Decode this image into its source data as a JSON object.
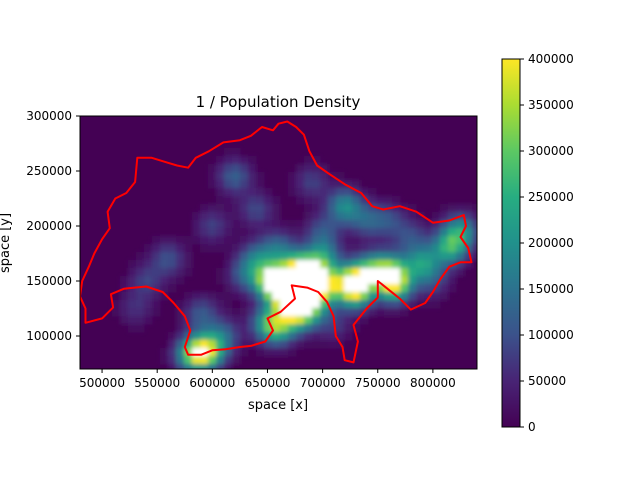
{
  "chart_data": {
    "type": "heatmap",
    "title": "1 / Population Density",
    "xlabel": "space [x]",
    "ylabel": "space [y]",
    "xlim": [
      480000,
      840000
    ],
    "ylim": [
      70000,
      300000
    ],
    "xticks": [
      500000,
      550000,
      600000,
      650000,
      700000,
      750000,
      800000
    ],
    "yticks": [
      100000,
      150000,
      200000,
      250000,
      300000
    ],
    "colorbar": {
      "range": [
        0,
        400000
      ],
      "ticks": [
        0,
        50000,
        100000,
        150000,
        200000,
        250000,
        300000,
        350000,
        400000
      ],
      "colormap": "viridis"
    },
    "background_value": 0,
    "hotspots": [
      {
        "x": 655000,
        "y": 150000,
        "value": 420000
      },
      {
        "x": 678000,
        "y": 160000,
        "value": 340000
      },
      {
        "x": 668000,
        "y": 140000,
        "value": 300000
      },
      {
        "x": 690000,
        "y": 152000,
        "value": 270000
      },
      {
        "x": 700000,
        "y": 146000,
        "value": 300000
      },
      {
        "x": 700000,
        "y": 172000,
        "value": 190000
      },
      {
        "x": 727000,
        "y": 150000,
        "value": 320000
      },
      {
        "x": 730000,
        "y": 140000,
        "value": 260000
      },
      {
        "x": 745000,
        "y": 160000,
        "value": 230000
      },
      {
        "x": 765000,
        "y": 147000,
        "value": 350000
      },
      {
        "x": 762000,
        "y": 160000,
        "value": 200000
      },
      {
        "x": 790000,
        "y": 166000,
        "value": 200000
      },
      {
        "x": 815000,
        "y": 180000,
        "value": 230000
      },
      {
        "x": 825000,
        "y": 195000,
        "value": 200000
      },
      {
        "x": 640000,
        "y": 170000,
        "value": 140000
      },
      {
        "x": 630000,
        "y": 155000,
        "value": 110000
      },
      {
        "x": 660000,
        "y": 180000,
        "value": 130000
      },
      {
        "x": 690000,
        "y": 130000,
        "value": 200000
      },
      {
        "x": 680000,
        "y": 120000,
        "value": 230000
      },
      {
        "x": 672000,
        "y": 130000,
        "value": 220000
      },
      {
        "x": 660000,
        "y": 108000,
        "value": 220000
      },
      {
        "x": 650000,
        "y": 112000,
        "value": 160000
      },
      {
        "x": 595000,
        "y": 86000,
        "value": 320000
      },
      {
        "x": 582000,
        "y": 83000,
        "value": 250000
      },
      {
        "x": 610000,
        "y": 100000,
        "value": 120000
      },
      {
        "x": 590000,
        "y": 120000,
        "value": 110000
      },
      {
        "x": 720000,
        "y": 218000,
        "value": 190000
      },
      {
        "x": 700000,
        "y": 195000,
        "value": 100000
      },
      {
        "x": 740000,
        "y": 205000,
        "value": 110000
      },
      {
        "x": 760000,
        "y": 205000,
        "value": 90000
      },
      {
        "x": 620000,
        "y": 245000,
        "value": 120000
      },
      {
        "x": 690000,
        "y": 240000,
        "value": 80000
      },
      {
        "x": 560000,
        "y": 170000,
        "value": 100000
      },
      {
        "x": 540000,
        "y": 150000,
        "value": 80000
      },
      {
        "x": 600000,
        "y": 200000,
        "value": 80000
      },
      {
        "x": 640000,
        "y": 215000,
        "value": 90000
      },
      {
        "x": 780000,
        "y": 190000,
        "value": 90000
      },
      {
        "x": 800000,
        "y": 150000,
        "value": 80000
      },
      {
        "x": 710000,
        "y": 110000,
        "value": 70000
      },
      {
        "x": 530000,
        "y": 125000,
        "value": 60000
      }
    ],
    "border": {
      "color": "#ff0000",
      "points": [
        [
          485000,
          112000
        ],
        [
          500000,
          116000
        ],
        [
          510000,
          126000
        ],
        [
          508000,
          138000
        ],
        [
          520000,
          143000
        ],
        [
          540000,
          145000
        ],
        [
          555000,
          140000
        ],
        [
          565000,
          130000
        ],
        [
          575000,
          118000
        ],
        [
          580000,
          105000
        ],
        [
          575000,
          90000
        ],
        [
          578000,
          83000
        ],
        [
          590000,
          83000
        ],
        [
          600000,
          87000
        ],
        [
          612000,
          88000
        ],
        [
          625000,
          90000
        ],
        [
          635000,
          91000
        ],
        [
          648000,
          95000
        ],
        [
          655000,
          105000
        ],
        [
          650000,
          116000
        ],
        [
          662000,
          122000
        ],
        [
          675000,
          134000
        ],
        [
          672000,
          146000
        ],
        [
          686000,
          144000
        ],
        [
          696000,
          140000
        ],
        [
          704000,
          131000
        ],
        [
          710000,
          118000
        ],
        [
          712000,
          100000
        ],
        [
          718000,
          90000
        ],
        [
          720000,
          78000
        ],
        [
          728000,
          76000
        ],
        [
          732000,
          95000
        ],
        [
          728000,
          110000
        ],
        [
          740000,
          125000
        ],
        [
          750000,
          135000
        ],
        [
          750000,
          150000
        ],
        [
          760000,
          142000
        ],
        [
          770000,
          134000
        ],
        [
          780000,
          124000
        ],
        [
          793000,
          130000
        ],
        [
          800000,
          140000
        ],
        [
          807000,
          152000
        ],
        [
          815000,
          163000
        ],
        [
          825000,
          167000
        ],
        [
          835000,
          167000
        ],
        [
          832000,
          180000
        ],
        [
          825000,
          190000
        ],
        [
          830000,
          200000
        ],
        [
          828000,
          210000
        ],
        [
          815000,
          205000
        ],
        [
          800000,
          203000
        ],
        [
          785000,
          213000
        ],
        [
          770000,
          218000
        ],
        [
          755000,
          215000
        ],
        [
          745000,
          218000
        ],
        [
          735000,
          230000
        ],
        [
          720000,
          238000
        ],
        [
          705000,
          248000
        ],
        [
          695000,
          255000
        ],
        [
          688000,
          268000
        ],
        [
          683000,
          283000
        ],
        [
          676000,
          290000
        ],
        [
          668000,
          295000
        ],
        [
          660000,
          293000
        ],
        [
          655000,
          287000
        ],
        [
          645000,
          290000
        ],
        [
          635000,
          282000
        ],
        [
          625000,
          278000
        ],
        [
          610000,
          276000
        ],
        [
          597000,
          268000
        ],
        [
          585000,
          262000
        ],
        [
          578000,
          253000
        ],
        [
          568000,
          255000
        ],
        [
          558000,
          258000
        ],
        [
          545000,
          262000
        ],
        [
          532000,
          262000
        ],
        [
          530000,
          240000
        ],
        [
          522000,
          230000
        ],
        [
          512000,
          225000
        ],
        [
          505000,
          213000
        ],
        [
          507000,
          198000
        ],
        [
          500000,
          188000
        ],
        [
          493000,
          175000
        ],
        [
          488000,
          163000
        ],
        [
          482000,
          150000
        ],
        [
          480000,
          136000
        ],
        [
          485000,
          125000
        ],
        [
          485000,
          112000
        ]
      ]
    }
  }
}
